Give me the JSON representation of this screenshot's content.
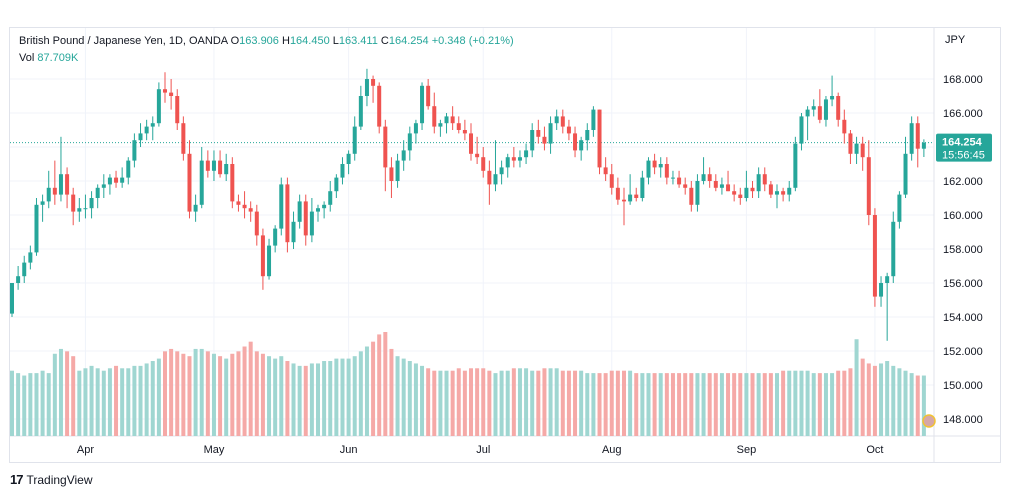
{
  "legend": {
    "symbol": "British Pound / Japanese Yen, 1D, OANDA",
    "o_label": "O",
    "o_value": "163.906",
    "h_label": "H",
    "h_value": "164.450",
    "l_label": "L",
    "l_value": "163.411",
    "c_label": "C",
    "c_value": "164.254",
    "change": "+0.348 (+0.21%)",
    "vol_label": "Vol",
    "vol_value": "87.709K"
  },
  "price_label": {
    "price": "164.254",
    "countdown": "15:56:45"
  },
  "footer": {
    "brand": "TradingView",
    "logo": "tv-logo-icon"
  },
  "colors": {
    "up": "#26a69a",
    "down": "#ef5350",
    "vol_up": "#9fd6d1",
    "vol_down": "#f5a9a7",
    "last_line": "#26a69a"
  },
  "chart_data": {
    "type": "candlestick",
    "currency": "JPY",
    "ylim": [
      147,
      171
    ],
    "y_ticks": [
      "148.000",
      "150.000",
      "152.000",
      "154.000",
      "156.000",
      "158.000",
      "160.000",
      "162.000",
      "164.000",
      "166.000",
      "168.000"
    ],
    "x_ticks": [
      "Apr",
      "May",
      "Jun",
      "Jul",
      "Aug",
      "Sep",
      "Oct"
    ],
    "x_tick_index": [
      12,
      33,
      55,
      77,
      98,
      120,
      141
    ],
    "last_price": 164.254,
    "grid": true,
    "ohlc": [
      [
        154.2,
        156.0,
        154.0,
        156.0
      ],
      [
        156.0,
        157.0,
        155.6,
        156.4
      ],
      [
        156.4,
        157.6,
        156.0,
        157.2
      ],
      [
        157.2,
        158.2,
        156.8,
        157.8
      ],
      [
        157.8,
        161.0,
        157.6,
        160.6
      ],
      [
        160.6,
        161.2,
        159.6,
        160.8
      ],
      [
        160.8,
        162.6,
        160.4,
        161.6
      ],
      [
        161.6,
        163.2,
        160.6,
        161.2
      ],
      [
        161.2,
        164.6,
        160.8,
        162.4
      ],
      [
        162.4,
        162.8,
        160.4,
        161.2
      ],
      [
        161.2,
        161.6,
        159.4,
        160.2
      ],
      [
        160.2,
        161.0,
        159.6,
        160.4
      ],
      [
        160.4,
        161.2,
        159.8,
        160.4
      ],
      [
        160.4,
        161.4,
        159.8,
        161.0
      ],
      [
        161.0,
        161.8,
        160.4,
        161.6
      ],
      [
        161.6,
        162.4,
        161.0,
        161.8
      ],
      [
        161.8,
        162.4,
        161.2,
        162.2
      ],
      [
        162.2,
        162.6,
        161.6,
        161.9
      ],
      [
        161.9,
        162.8,
        161.6,
        162.2
      ],
      [
        162.2,
        163.4,
        161.8,
        163.2
      ],
      [
        163.2,
        164.8,
        162.8,
        164.4
      ],
      [
        164.4,
        165.4,
        164.0,
        164.8
      ],
      [
        164.8,
        165.6,
        164.4,
        165.2
      ],
      [
        165.2,
        165.8,
        164.4,
        165.4
      ],
      [
        165.4,
        167.8,
        165.2,
        167.4
      ],
      [
        167.4,
        168.4,
        166.6,
        167.2
      ],
      [
        167.2,
        168.0,
        166.2,
        167.0
      ],
      [
        167.0,
        167.4,
        165.0,
        165.4
      ],
      [
        165.4,
        165.8,
        163.2,
        163.6
      ],
      [
        163.6,
        164.4,
        159.8,
        160.2
      ],
      [
        160.2,
        161.2,
        159.6,
        160.6
      ],
      [
        160.6,
        164.0,
        160.4,
        163.2
      ],
      [
        163.2,
        163.8,
        162.2,
        162.6
      ],
      [
        162.6,
        163.8,
        162.0,
        163.2
      ],
      [
        163.2,
        163.8,
        162.2,
        162.4
      ],
      [
        162.4,
        163.6,
        162.0,
        163.0
      ],
      [
        163.0,
        163.4,
        160.4,
        160.8
      ],
      [
        160.8,
        161.2,
        160.2,
        160.6
      ],
      [
        160.6,
        161.4,
        159.8,
        160.4
      ],
      [
        160.4,
        160.8,
        159.6,
        160.2
      ],
      [
        160.2,
        160.6,
        158.2,
        158.8
      ],
      [
        158.8,
        159.2,
        155.6,
        156.4
      ],
      [
        156.4,
        158.6,
        156.2,
        158.2
      ],
      [
        158.2,
        159.4,
        157.8,
        159.2
      ],
      [
        159.2,
        162.2,
        158.8,
        161.8
      ],
      [
        161.8,
        162.2,
        157.8,
        158.4
      ],
      [
        158.4,
        160.2,
        158.0,
        159.6
      ],
      [
        159.6,
        161.2,
        159.2,
        160.8
      ],
      [
        160.8,
        161.2,
        158.2,
        158.8
      ],
      [
        158.8,
        161.0,
        158.4,
        160.2
      ],
      [
        160.2,
        160.6,
        159.6,
        160.4
      ],
      [
        160.4,
        160.8,
        159.8,
        160.6
      ],
      [
        160.6,
        162.0,
        160.2,
        161.4
      ],
      [
        161.4,
        162.4,
        161.0,
        162.2
      ],
      [
        162.2,
        163.4,
        161.8,
        163.0
      ],
      [
        163.0,
        163.8,
        162.4,
        163.6
      ],
      [
        163.6,
        165.8,
        163.2,
        165.2
      ],
      [
        165.2,
        167.6,
        165.0,
        167.0
      ],
      [
        167.0,
        168.6,
        166.4,
        168.0
      ],
      [
        168.0,
        168.2,
        166.6,
        167.6
      ],
      [
        167.6,
        167.8,
        164.8,
        165.2
      ],
      [
        165.2,
        165.6,
        161.4,
        162.8
      ],
      [
        162.8,
        163.4,
        161.0,
        162.0
      ],
      [
        162.0,
        163.6,
        161.6,
        163.2
      ],
      [
        163.2,
        164.4,
        162.6,
        163.8
      ],
      [
        163.8,
        165.2,
        163.2,
        164.8
      ],
      [
        164.8,
        165.6,
        164.2,
        165.4
      ],
      [
        165.4,
        167.8,
        165.0,
        167.6
      ],
      [
        167.6,
        168.0,
        166.2,
        166.4
      ],
      [
        166.4,
        167.2,
        164.8,
        165.2
      ],
      [
        165.2,
        165.6,
        164.6,
        165.4
      ],
      [
        165.4,
        166.0,
        164.8,
        165.8
      ],
      [
        165.8,
        166.4,
        165.0,
        165.4
      ],
      [
        165.4,
        165.8,
        164.8,
        165.0
      ],
      [
        165.0,
        165.6,
        164.4,
        164.8
      ],
      [
        164.8,
        165.4,
        163.2,
        163.6
      ],
      [
        163.6,
        164.6,
        163.0,
        163.4
      ],
      [
        163.4,
        164.0,
        162.2,
        162.6
      ],
      [
        162.6,
        163.2,
        160.6,
        161.8
      ],
      [
        161.8,
        164.4,
        161.4,
        162.4
      ],
      [
        162.4,
        163.2,
        161.8,
        162.8
      ],
      [
        162.8,
        163.6,
        162.2,
        163.4
      ],
      [
        163.4,
        164.0,
        162.8,
        163.2
      ],
      [
        163.2,
        163.8,
        162.8,
        163.4
      ],
      [
        163.4,
        164.2,
        163.0,
        163.8
      ],
      [
        163.8,
        165.4,
        163.4,
        165.0
      ],
      [
        165.0,
        165.6,
        164.2,
        164.6
      ],
      [
        164.6,
        165.2,
        163.8,
        164.2
      ],
      [
        164.2,
        165.8,
        163.6,
        165.4
      ],
      [
        165.4,
        166.2,
        165.0,
        165.8
      ],
      [
        165.8,
        166.2,
        164.8,
        165.2
      ],
      [
        165.2,
        165.6,
        164.4,
        164.8
      ],
      [
        164.8,
        165.2,
        163.4,
        163.8
      ],
      [
        163.8,
        164.6,
        163.2,
        164.4
      ],
      [
        164.4,
        165.4,
        163.8,
        165.0
      ],
      [
        165.0,
        166.4,
        164.6,
        166.2
      ],
      [
        166.2,
        166.2,
        162.4,
        162.8
      ],
      [
        162.8,
        163.4,
        162.0,
        162.4
      ],
      [
        162.4,
        163.0,
        161.2,
        161.6
      ],
      [
        161.6,
        162.2,
        160.6,
        160.9
      ],
      [
        160.9,
        161.6,
        159.4,
        160.8
      ],
      [
        160.8,
        162.4,
        160.6,
        161.2
      ],
      [
        161.2,
        161.6,
        160.8,
        161.0
      ],
      [
        161.0,
        162.6,
        160.8,
        162.2
      ],
      [
        162.2,
        163.4,
        161.8,
        163.2
      ],
      [
        163.2,
        163.6,
        162.4,
        162.8
      ],
      [
        162.8,
        163.4,
        162.2,
        163.0
      ],
      [
        163.0,
        163.4,
        161.8,
        162.2
      ],
      [
        162.2,
        162.6,
        161.8,
        162.2
      ],
      [
        162.2,
        162.6,
        161.6,
        161.8
      ],
      [
        161.8,
        162.2,
        161.2,
        161.6
      ],
      [
        161.6,
        162.0,
        160.2,
        160.6
      ],
      [
        160.6,
        162.4,
        160.2,
        162.0
      ],
      [
        162.0,
        163.4,
        161.8,
        162.4
      ],
      [
        162.4,
        162.8,
        161.6,
        162.0
      ],
      [
        162.0,
        162.4,
        161.4,
        161.6
      ],
      [
        161.6,
        162.2,
        161.2,
        161.8
      ],
      [
        161.8,
        162.6,
        161.4,
        161.4
      ],
      [
        161.4,
        161.8,
        160.8,
        161.2
      ],
      [
        161.2,
        161.6,
        160.6,
        161.0
      ],
      [
        161.0,
        162.6,
        160.8,
        161.6
      ],
      [
        161.6,
        162.0,
        161.0,
        161.4
      ],
      [
        161.4,
        162.8,
        161.0,
        162.4
      ],
      [
        162.4,
        162.8,
        161.4,
        161.8
      ],
      [
        161.8,
        162.0,
        161.0,
        161.2
      ],
      [
        161.2,
        161.8,
        160.4,
        161.4
      ],
      [
        161.4,
        161.6,
        160.8,
        161.2
      ],
      [
        161.2,
        162.0,
        160.8,
        161.6
      ],
      [
        161.6,
        164.6,
        161.4,
        164.2
      ],
      [
        164.2,
        166.0,
        163.8,
        165.8
      ],
      [
        165.8,
        166.4,
        164.4,
        166.2
      ],
      [
        166.2,
        166.8,
        165.8,
        166.4
      ],
      [
        166.4,
        167.4,
        165.4,
        165.6
      ],
      [
        165.6,
        167.0,
        165.2,
        166.8
      ],
      [
        166.8,
        168.2,
        166.4,
        167.0
      ],
      [
        167.0,
        167.2,
        165.2,
        165.6
      ],
      [
        165.6,
        166.2,
        164.2,
        164.8
      ],
      [
        164.8,
        165.0,
        163.0,
        163.6
      ],
      [
        163.6,
        164.6,
        163.0,
        164.2
      ],
      [
        164.2,
        164.6,
        162.6,
        163.4
      ],
      [
        163.4,
        164.4,
        159.4,
        160.0
      ],
      [
        160.0,
        160.4,
        154.6,
        155.2
      ],
      [
        155.2,
        156.4,
        154.6,
        156.0
      ],
      [
        156.0,
        156.6,
        152.6,
        156.4
      ],
      [
        156.4,
        160.2,
        156.0,
        159.6
      ],
      [
        159.6,
        161.4,
        159.2,
        161.2
      ],
      [
        161.2,
        164.6,
        161.0,
        163.6
      ],
      [
        163.6,
        165.8,
        163.2,
        165.4
      ],
      [
        165.4,
        165.8,
        162.8,
        163.9
      ],
      [
        163.9,
        164.45,
        163.411,
        164.254
      ]
    ],
    "volume_up": [
      true,
      true,
      true,
      true,
      true,
      true,
      true,
      true,
      true,
      false,
      false,
      true,
      true,
      true,
      true,
      true,
      true,
      false,
      true,
      true,
      true,
      true,
      true,
      true,
      true,
      false,
      false,
      false,
      false,
      false,
      true,
      true,
      false,
      true,
      false,
      true,
      false,
      false,
      false,
      false,
      false,
      false,
      true,
      true,
      true,
      false,
      true,
      true,
      false,
      true,
      true,
      true,
      true,
      true,
      true,
      true,
      true,
      true,
      true,
      false,
      false,
      false,
      false,
      true,
      true,
      true,
      true,
      true,
      false,
      false,
      true,
      true,
      false,
      false,
      false,
      false,
      false,
      false,
      false,
      true,
      true,
      true,
      false,
      true,
      true,
      true,
      false,
      false,
      true,
      true,
      false,
      false,
      false,
      true,
      true,
      true,
      false,
      false,
      false,
      false,
      false,
      true,
      false,
      true,
      true,
      false,
      true,
      false,
      false,
      false,
      false,
      false,
      true,
      true,
      false,
      false,
      true,
      false,
      false,
      false,
      true,
      false,
      true,
      false,
      false,
      true,
      false,
      true,
      true,
      true,
      true,
      true,
      false,
      true,
      true,
      false,
      false,
      false,
      true,
      false,
      false,
      false,
      true,
      true,
      true,
      true,
      true,
      true,
      false,
      true
    ],
    "volume": [
      27,
      26,
      25,
      26,
      26,
      27,
      26,
      34,
      36,
      35,
      33,
      27,
      28,
      29,
      28,
      27,
      28,
      29,
      28,
      28,
      29,
      29,
      30,
      31,
      32,
      35,
      36,
      35,
      34,
      33,
      36,
      36,
      35,
      34,
      33,
      32,
      34,
      35,
      37,
      39,
      35,
      34,
      33,
      32,
      33,
      31,
      30,
      29,
      29,
      30,
      30,
      31,
      31,
      32,
      32,
      32,
      33,
      35,
      37,
      39,
      42,
      43,
      36,
      33,
      32,
      31,
      30,
      29,
      28,
      27,
      27,
      27,
      27,
      28,
      27,
      28,
      28,
      28,
      27,
      26,
      27,
      27,
      28,
      28,
      28,
      27,
      27,
      28,
      28,
      28,
      27,
      27,
      27,
      27,
      26,
      26,
      26,
      26,
      27,
      27,
      27,
      27,
      26,
      26,
      26,
      26,
      26,
      26,
      26,
      26,
      26,
      26,
      26,
      26,
      26,
      26,
      26,
      26,
      26,
      26,
      26,
      26,
      26,
      26,
      26,
      26,
      27,
      27,
      27,
      27,
      27,
      26,
      26,
      26,
      26,
      27,
      27,
      28,
      40,
      32,
      30,
      29,
      30,
      31,
      29,
      28,
      27,
      26,
      25,
      25
    ]
  }
}
